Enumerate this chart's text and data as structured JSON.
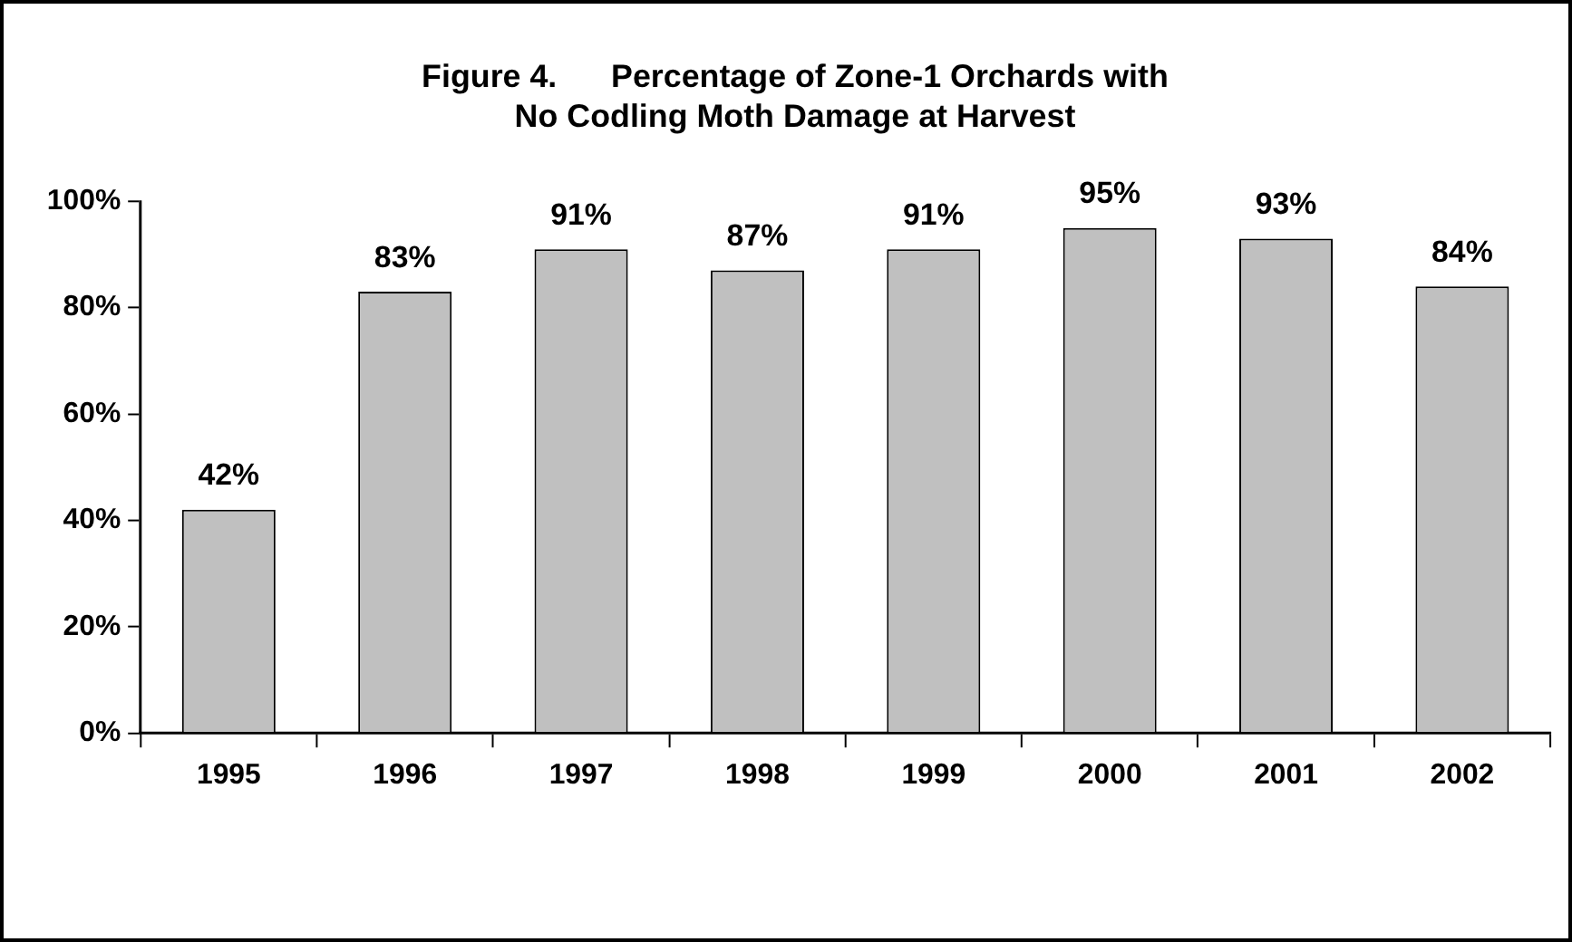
{
  "chart_data": {
    "type": "bar",
    "title": "Figure 4.      Percentage of Zone-1 Orchards with\nNo Codling Moth Damage at Harvest",
    "categories": [
      "1995",
      "1996",
      "1997",
      "1998",
      "1999",
      "2000",
      "2001",
      "2002"
    ],
    "values": [
      42,
      83,
      91,
      87,
      91,
      95,
      93,
      84
    ],
    "value_labels": [
      "42%",
      "83%",
      "91%",
      "87%",
      "91%",
      "95%",
      "93%",
      "84%"
    ],
    "color": "#c0c0c0",
    "ylim": [
      0,
      100
    ],
    "yticks": [
      {
        "value": 0,
        "label": "0%"
      },
      {
        "value": 20,
        "label": "20%"
      },
      {
        "value": 40,
        "label": "40%"
      },
      {
        "value": 60,
        "label": "60%"
      },
      {
        "value": 80,
        "label": "80%"
      },
      {
        "value": 100,
        "label": "100%"
      }
    ],
    "grid": false,
    "legend": false
  }
}
